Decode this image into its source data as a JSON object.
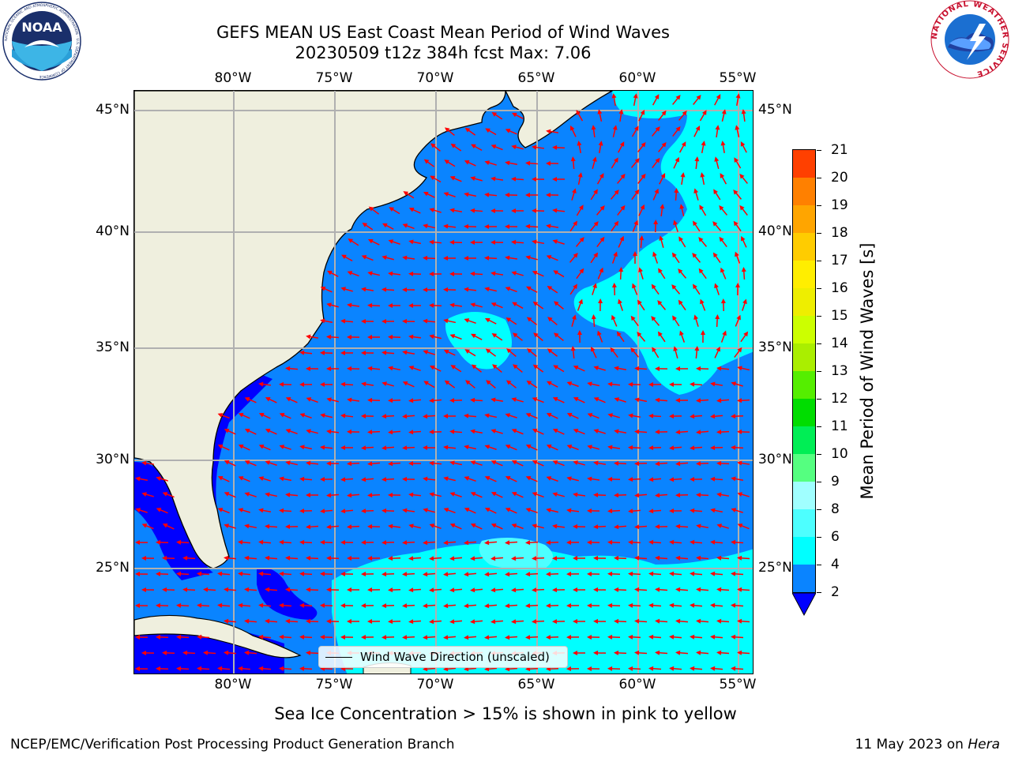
{
  "header": {
    "title_line1": "GEFS MEAN US East Coast Mean Period of Wind Waves",
    "title_line2": "20230509 t12z 384h fcst   Max: 7.06"
  },
  "logos": {
    "noaa_text": "NOAA",
    "noaa_ring_text": "NATIONAL OCEANIC AND ATMOSPHERIC ADMINISTRATION · U.S. DEPARTMENT OF COMMERCE",
    "nws_ring_text": "NATIONAL WEATHER SERVICE"
  },
  "map": {
    "lon_labels": [
      "80°W",
      "75°W",
      "70°W",
      "65°W",
      "60°W",
      "55°W"
    ],
    "lat_labels": [
      "45°N",
      "40°N",
      "35°N",
      "30°N",
      "25°N"
    ],
    "colors": {
      "land": "#efefde",
      "ocean_2_4": "#0a84ff",
      "ocean_4_6": "#00ffff",
      "ocean_below_2": "#0000ff",
      "arrow": "#ff0000",
      "grid": "#b0b0b0"
    },
    "legend_label": "Wind Wave Direction (unscaled)",
    "arrow_icon": "red-arrow-icon"
  },
  "colorbar": {
    "title": "Mean Period of Wind Waves [s]",
    "ticks": [
      "2",
      "4",
      "6",
      "8",
      "9",
      "10",
      "11",
      "12",
      "13",
      "14",
      "15",
      "16",
      "17",
      "18",
      "19",
      "20",
      "21"
    ],
    "colors": [
      "#0a84ff",
      "#00ffff",
      "#4dffff",
      "#a0ffff",
      "#55ff80",
      "#00ee55",
      "#00dd00",
      "#55ee00",
      "#aaee00",
      "#ccff00",
      "#eeee00",
      "#ffee00",
      "#ffcc00",
      "#ffa500",
      "#ff8000",
      "#ff4000",
      "#ff0000"
    ],
    "extend_color": "#0000ff"
  },
  "subtitle": "Sea Ice Concentration > 15% is shown in pink to yellow",
  "footer": {
    "left": "NCEP/EMC/Verification Post Processing Product Generation Branch",
    "right_date": "11 May 2023 on",
    "right_host": "Hera"
  }
}
